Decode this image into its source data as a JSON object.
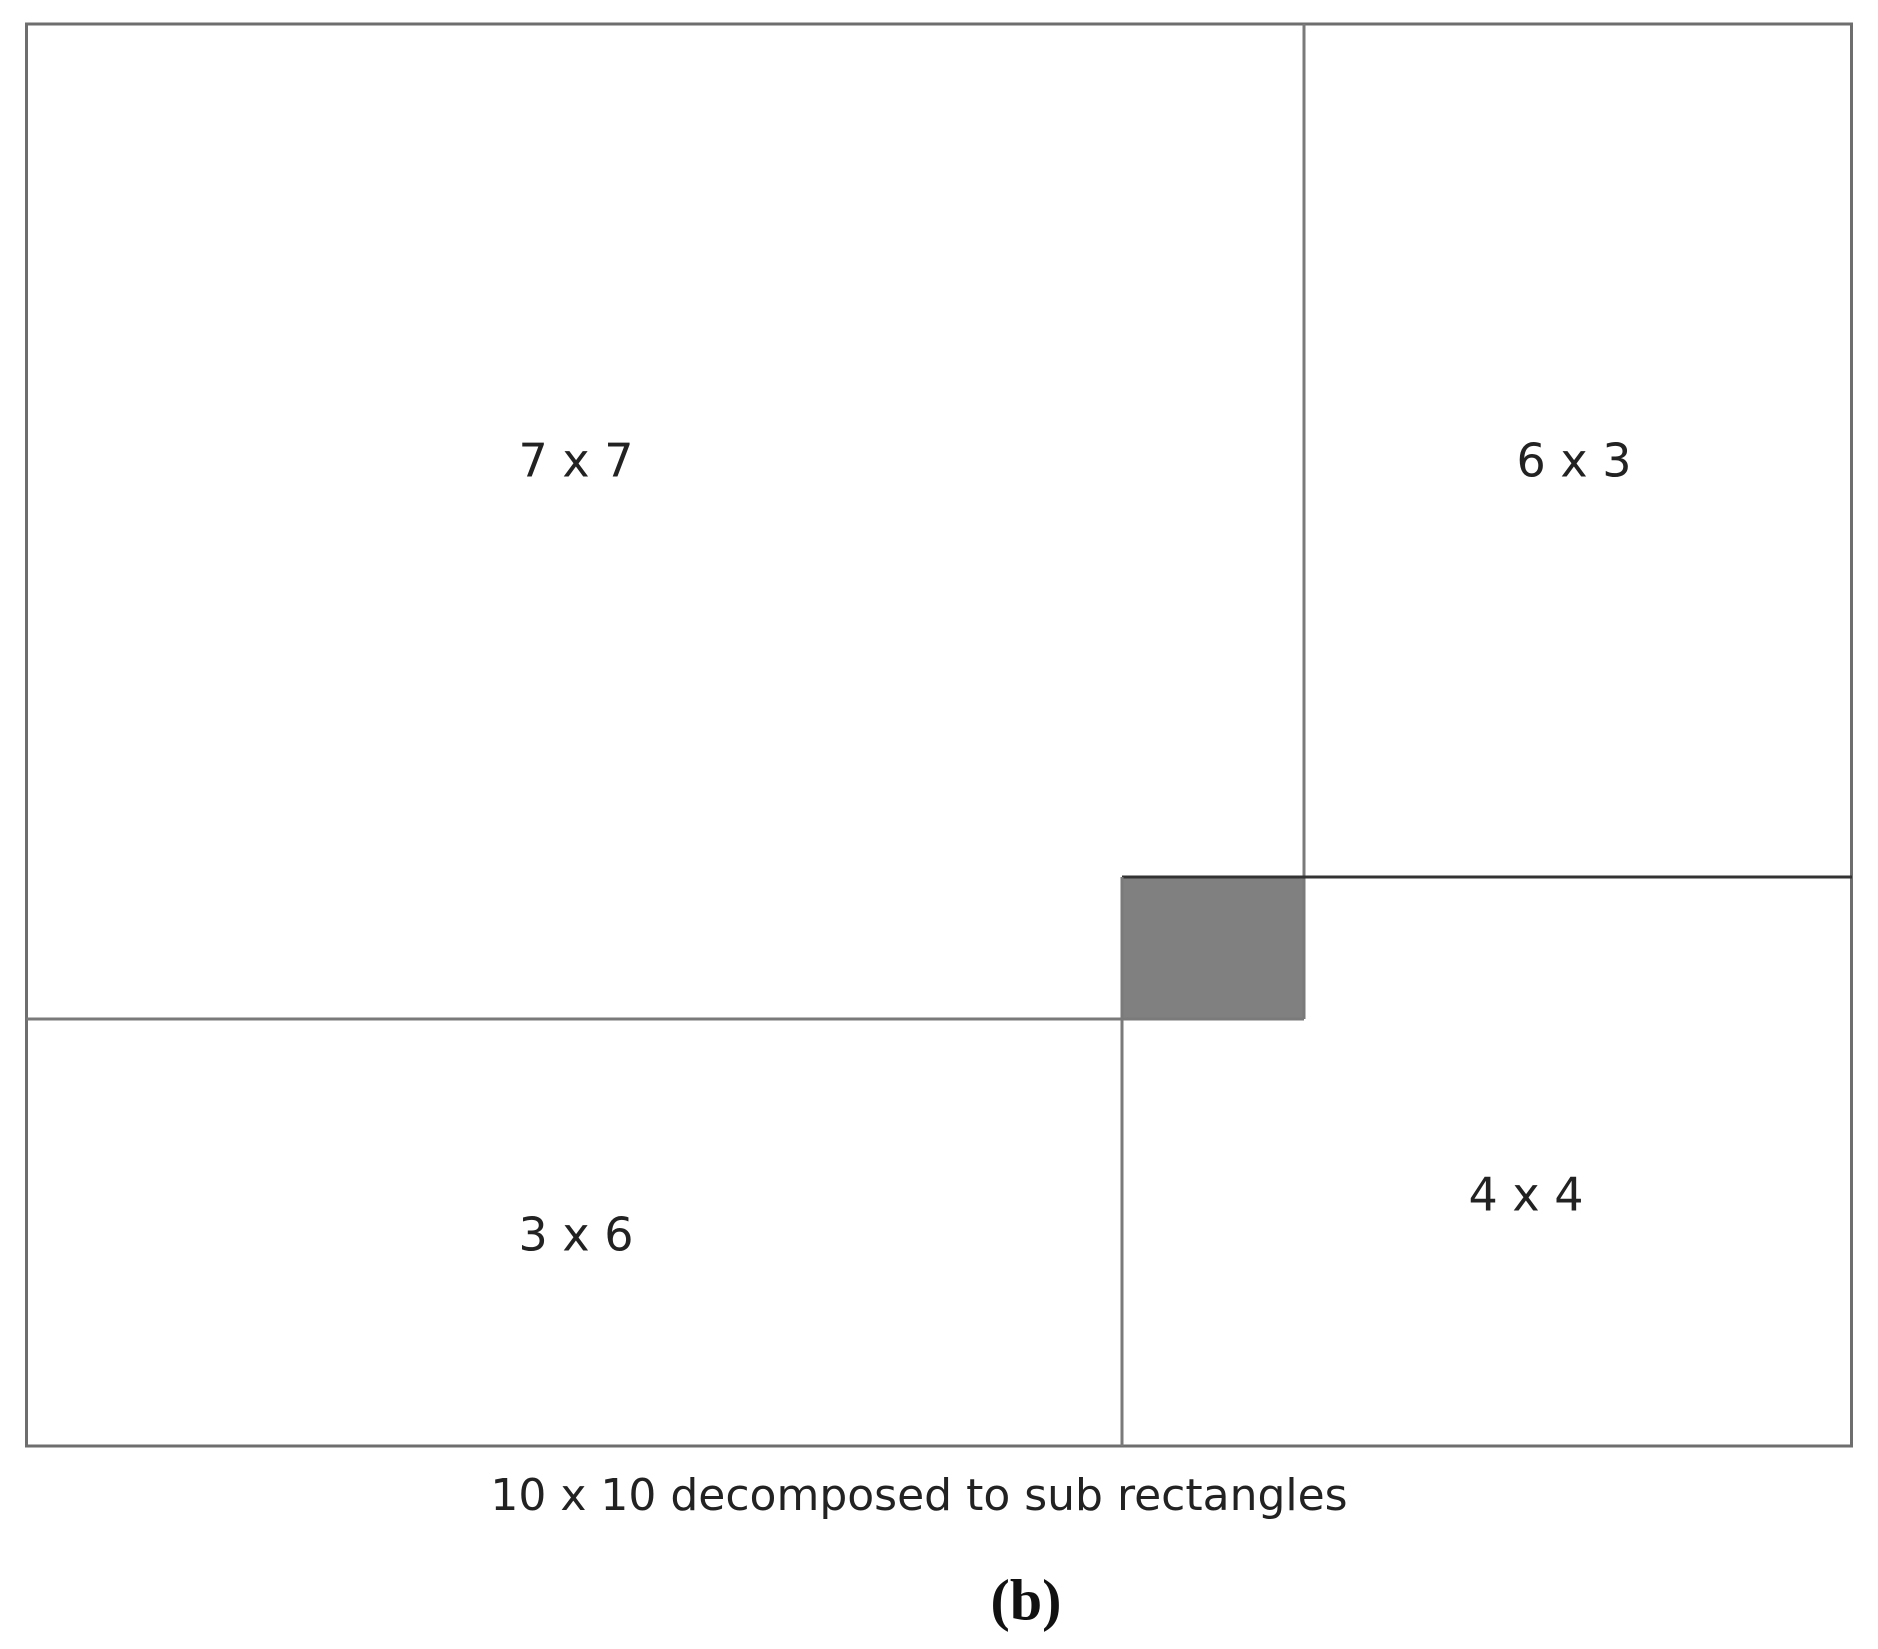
{
  "diagram": {
    "regions": [
      {
        "label": "7 x 7"
      },
      {
        "label": "6 x 3"
      },
      {
        "label": "3 x 6"
      },
      {
        "label": "4 x 4"
      }
    ],
    "caption": "10 x 10 decomposed to sub rectangles",
    "panel_label": "(b)"
  }
}
